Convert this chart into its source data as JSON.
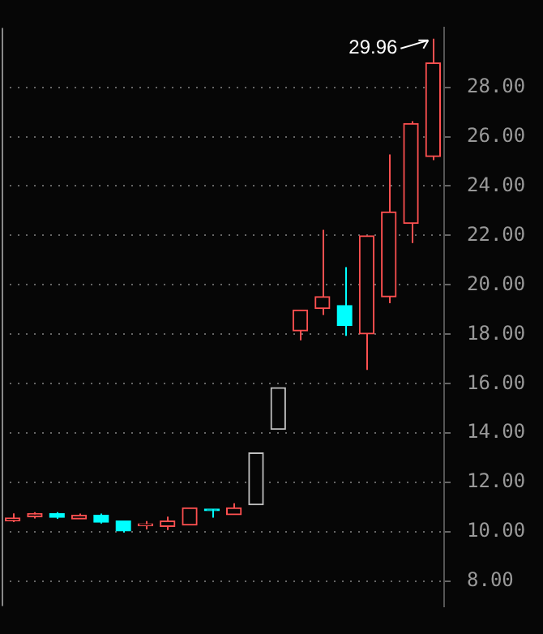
{
  "chart_data": {
    "type": "candlestick",
    "categories": [
      null,
      null,
      null,
      null,
      null,
      null,
      null,
      null,
      null,
      null,
      null,
      null,
      null,
      null,
      null,
      null,
      null,
      null,
      null,
      null
    ],
    "ohlc": [
      [
        10.45,
        10.75,
        10.4,
        10.57
      ],
      [
        10.62,
        10.8,
        10.55,
        10.74
      ],
      [
        10.74,
        10.8,
        10.53,
        10.59
      ],
      [
        10.53,
        10.74,
        10.53,
        10.68
      ],
      [
        10.68,
        10.74,
        10.34,
        10.4
      ],
      [
        10.44,
        10.44,
        9.98,
        10.04
      ],
      [
        10.26,
        10.44,
        10.1,
        10.28
      ],
      [
        10.22,
        10.62,
        10.08,
        10.44
      ],
      [
        10.28,
        10.98,
        10.28,
        10.98
      ],
      [
        10.88,
        10.92,
        10.58,
        10.86
      ],
      [
        10.7,
        11.16,
        10.7,
        10.98
      ],
      [
        11.1,
        13.2,
        11.1,
        13.2
      ],
      [
        14.15,
        15.84,
        14.15,
        15.84
      ],
      [
        18.14,
        18.98,
        17.76,
        18.98
      ],
      [
        19.04,
        22.23,
        18.78,
        19.52
      ],
      [
        19.16,
        20.72,
        17.94,
        18.36
      ],
      [
        18.02,
        21.98,
        16.56,
        21.98
      ],
      [
        19.52,
        25.28,
        19.26,
        22.95
      ],
      [
        22.49,
        26.62,
        21.69,
        26.53
      ],
      [
        25.19,
        29.96,
        25.05,
        28.98
      ]
    ],
    "colors": [
      "#ff5050",
      "#ff5050",
      "#00ffff",
      "#ff5050",
      "#00ffff",
      "#00ffff",
      "#ff5050",
      "#ff5050",
      "#ff5050",
      "#00ffff",
      "#ff5050",
      "#c0c0c0",
      "#c0c0c0",
      "#ff5050",
      "#ff5050",
      "#00ffff",
      "#ff5050",
      "#ff5050",
      "#ff5050",
      "#ff5050"
    ],
    "ylim": [
      7,
      30.4
    ],
    "yticks": [
      {
        "value": 8,
        "label": "8.00"
      },
      {
        "value": 10,
        "label": "10.00"
      },
      {
        "value": 12,
        "label": "12.00"
      },
      {
        "value": 14,
        "label": "14.00"
      },
      {
        "value": 16,
        "label": "16.00"
      },
      {
        "value": 18,
        "label": "18.00"
      },
      {
        "value": 20,
        "label": "20.00"
      },
      {
        "value": 22,
        "label": "22.00"
      },
      {
        "value": 24,
        "label": "24.00"
      },
      {
        "value": 26,
        "label": "26.00"
      },
      {
        "value": 28,
        "label": "28.00"
      }
    ],
    "grid": "y",
    "annotations": [
      "29.96"
    ]
  }
}
